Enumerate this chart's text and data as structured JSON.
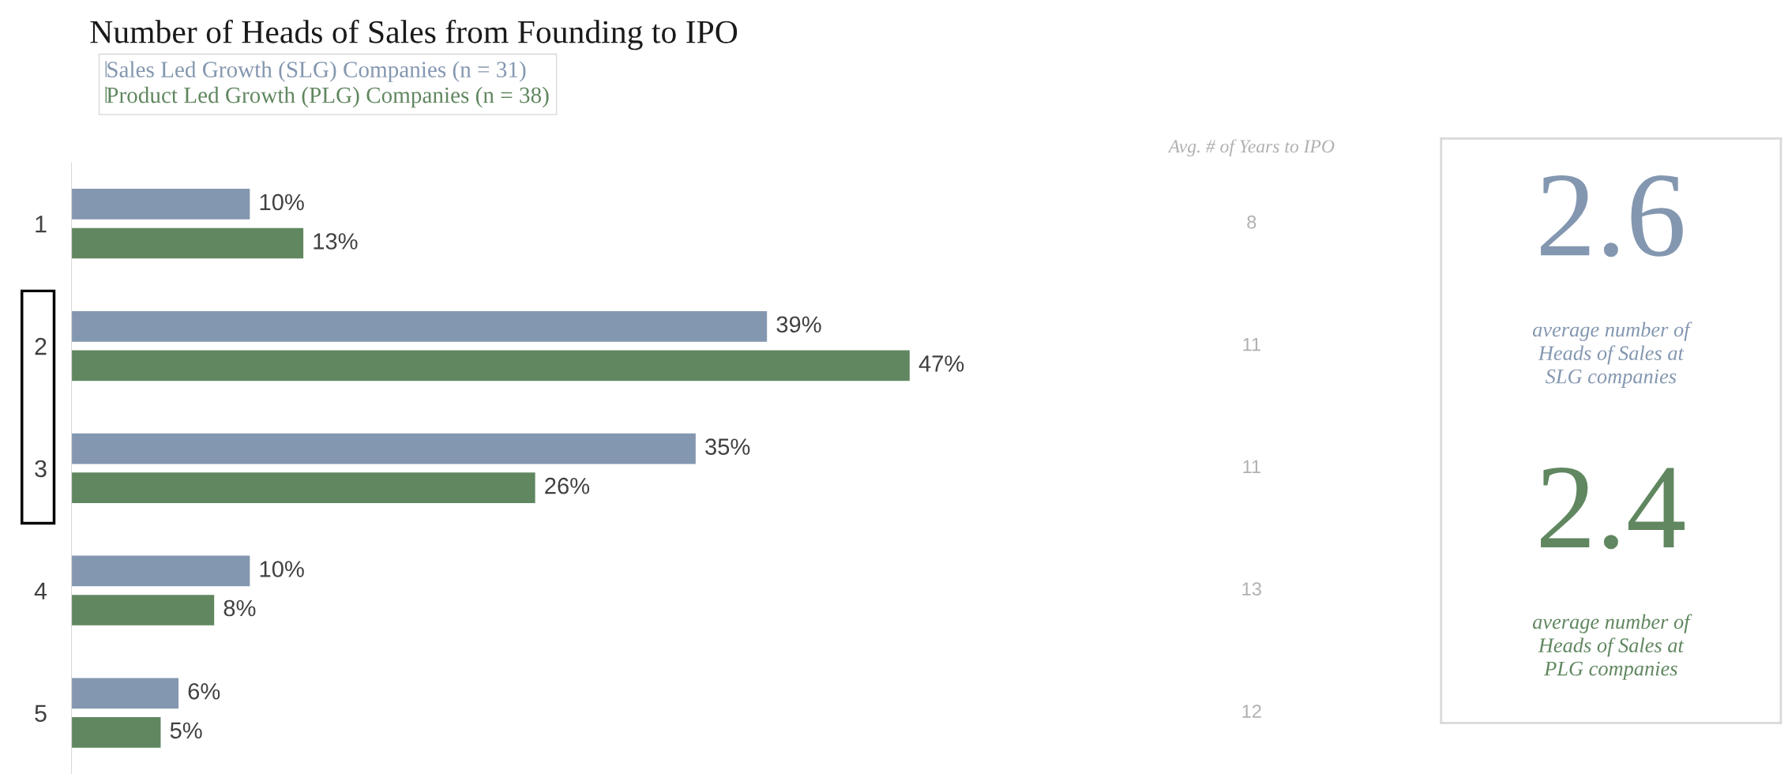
{
  "chart_data": [
    {
      "type": "bar",
      "orientation": "horizontal",
      "title": "Number of Heads of Sales from Founding to IPO",
      "categories": [
        "1",
        "2",
        "3",
        "4",
        "5"
      ],
      "series": [
        {
          "name": "Sales Led Growth (SLG) Companies (n = 31)",
          "color": "#8497b0",
          "values": [
            10,
            39,
            35,
            10,
            6
          ],
          "value_labels": [
            "10%",
            "39%",
            "35%",
            "10%",
            "6%"
          ]
        },
        {
          "name": "Product Led Growth (PLG) Companies (n = 38)",
          "color": "#608760",
          "values": [
            13,
            47,
            26,
            8,
            5
          ],
          "value_labels": [
            "13%",
            "47%",
            "26%",
            "8%",
            "5%"
          ]
        }
      ],
      "legend": "top left",
      "annotations": [
        "Avg. # of Years to IPO",
        "8",
        "11",
        "11",
        "13",
        "12"
      ]
    },
    {
      "type": "other",
      "annotations": [
        "2.6",
        "average number of\nHeads of Sales at\nSLG companies",
        "2.4",
        "average number of\nHeads of Sales at\nPLG companies"
      ],
      "colors": [
        "#8497b0",
        "#608760"
      ]
    }
  ]
}
